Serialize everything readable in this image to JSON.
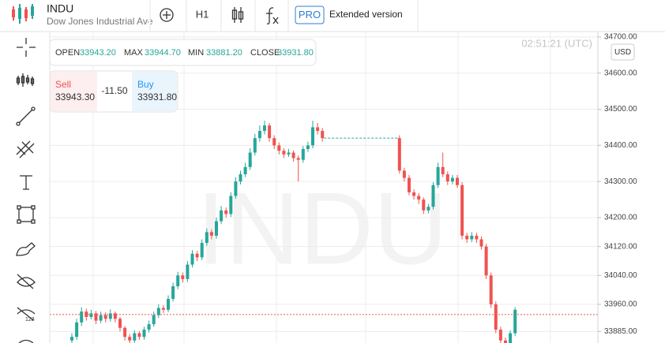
{
  "header": {
    "symbol": "INDU",
    "name": "Dow Jones Industrial Ave",
    "timeframe": "H1",
    "pro": "PRO",
    "extended": "Extended version"
  },
  "ohlc": {
    "open_label": "OPEN",
    "open": "33943.20",
    "max_label": "MAX",
    "max": "33944.70",
    "min_label": "MIN",
    "min": "33881.20",
    "close_label": "CLOSE",
    "close": "33931.80"
  },
  "trade": {
    "sell_label": "Sell",
    "sell": "33943.30",
    "spread": "-11.50",
    "buy_label": "Buy",
    "buy": "33931.80"
  },
  "clock": "02:51:21 (UTC)",
  "currency": "USD",
  "watermark": "INDU",
  "chart_data": {
    "type": "candlestick",
    "up_color": "#26a69a",
    "down_color": "#ef5350",
    "grid": true,
    "ylim": [
      33853,
      34715
    ],
    "yticks": [
      {
        "value": 34700,
        "label": "34700.00"
      },
      {
        "value": 34600,
        "label": "34600.00"
      },
      {
        "value": 34500,
        "label": "34500.00"
      },
      {
        "value": 34400,
        "label": "34400.00"
      },
      {
        "value": 34300,
        "label": "34300.00"
      },
      {
        "value": 34200,
        "label": "34200.00"
      },
      {
        "value": 34120,
        "label": "34120.00"
      },
      {
        "value": 34040,
        "label": "34040.00"
      },
      {
        "value": 33960,
        "label": "33960.00"
      },
      {
        "value": 33885,
        "label": "33885.00"
      }
    ],
    "price_line": 33931.8,
    "gap_line": 34420,
    "open": [
      33860,
      33870,
      33910,
      33940,
      33925,
      33935,
      33915,
      33930,
      33920,
      33935,
      33920,
      33895,
      33870,
      33860,
      33880,
      33870,
      33890,
      33905,
      33930,
      33950,
      33945,
      33975,
      34010,
      34040,
      34030,
      34070,
      34100,
      34090,
      34130,
      34160,
      34150,
      34190,
      34220,
      34210,
      34260,
      34300,
      34320,
      34340,
      34380,
      34420,
      34440,
      34455,
      34420,
      34400,
      34385,
      34375,
      34380,
      34365,
      34360,
      34390,
      34400,
      34450,
      34440,
      null,
      null,
      null,
      null,
      null,
      null,
      null,
      null,
      null,
      null,
      null,
      null,
      null,
      null,
      null,
      34420,
      34330,
      34310,
      34270,
      34260,
      34250,
      34220,
      34230,
      34290,
      34340,
      34320,
      34300,
      34310,
      34290,
      34150,
      34140,
      34150,
      34140,
      34120,
      34040,
      33960,
      33890,
      33860,
      33840,
      33880
    ],
    "close": [
      33870,
      33910,
      33940,
      33925,
      33935,
      33915,
      33930,
      33920,
      33935,
      33920,
      33895,
      33870,
      33860,
      33880,
      33870,
      33890,
      33905,
      33930,
      33950,
      33945,
      33975,
      34010,
      34040,
      34030,
      34070,
      34100,
      34090,
      34130,
      34160,
      34150,
      34190,
      34220,
      34210,
      34260,
      34300,
      34320,
      34340,
      34380,
      34420,
      34440,
      34455,
      34420,
      34400,
      34385,
      34375,
      34380,
      34365,
      34360,
      34390,
      34400,
      34450,
      34440,
      34420,
      null,
      null,
      null,
      null,
      null,
      null,
      null,
      null,
      null,
      null,
      null,
      null,
      null,
      null,
      null,
      34330,
      34310,
      34270,
      34260,
      34250,
      34220,
      34230,
      34290,
      34340,
      34320,
      34300,
      34310,
      34290,
      34150,
      34140,
      34150,
      34140,
      34120,
      34040,
      33960,
      33890,
      33860,
      33840,
      33880,
      33945
    ],
    "high": [
      33880,
      33920,
      33952,
      33948,
      33945,
      33942,
      33940,
      33938,
      33946,
      33940,
      33925,
      33900,
      33878,
      33888,
      33886,
      33898,
      33915,
      33940,
      33960,
      33958,
      33985,
      34020,
      34050,
      34048,
      34080,
      34110,
      34108,
      34140,
      34170,
      34168,
      34200,
      34232,
      34228,
      34270,
      34312,
      34330,
      34352,
      34392,
      34432,
      34455,
      34468,
      34462,
      34428,
      34408,
      34392,
      34390,
      34386,
      34372,
      34398,
      34410,
      34468,
      34462,
      34448,
      null,
      null,
      null,
      null,
      null,
      null,
      null,
      null,
      null,
      null,
      null,
      null,
      null,
      null,
      null,
      34428,
      34338,
      34318,
      34278,
      34268,
      34256,
      34238,
      34298,
      34352,
      34380,
      34328,
      34318,
      34318,
      34298,
      34158,
      34160,
      34158,
      34148,
      34128,
      34048,
      33968,
      33898,
      33868,
      33888,
      33952
    ],
    "low": [
      33850,
      33862,
      33900,
      33915,
      33918,
      33905,
      33908,
      33910,
      33912,
      33910,
      33885,
      33860,
      33850,
      33852,
      33862,
      33862,
      33882,
      33898,
      33922,
      33936,
      33938,
      33968,
      34002,
      34020,
      34022,
      34062,
      34080,
      34082,
      34122,
      34140,
      34142,
      34182,
      34200,
      34202,
      34252,
      34292,
      34312,
      34332,
      34372,
      34410,
      34430,
      34410,
      34390,
      34375,
      34365,
      34368,
      34355,
      34300,
      34352,
      34382,
      34392,
      34430,
      34410,
      null,
      null,
      null,
      null,
      null,
      null,
      null,
      null,
      null,
      null,
      null,
      null,
      null,
      null,
      null,
      34322,
      34300,
      34262,
      34250,
      34238,
      34210,
      34212,
      34222,
      34282,
      34312,
      34290,
      34292,
      34282,
      34140,
      34130,
      34132,
      34130,
      34112,
      34030,
      33950,
      33880,
      33850,
      33830,
      33832,
      33872
    ]
  }
}
